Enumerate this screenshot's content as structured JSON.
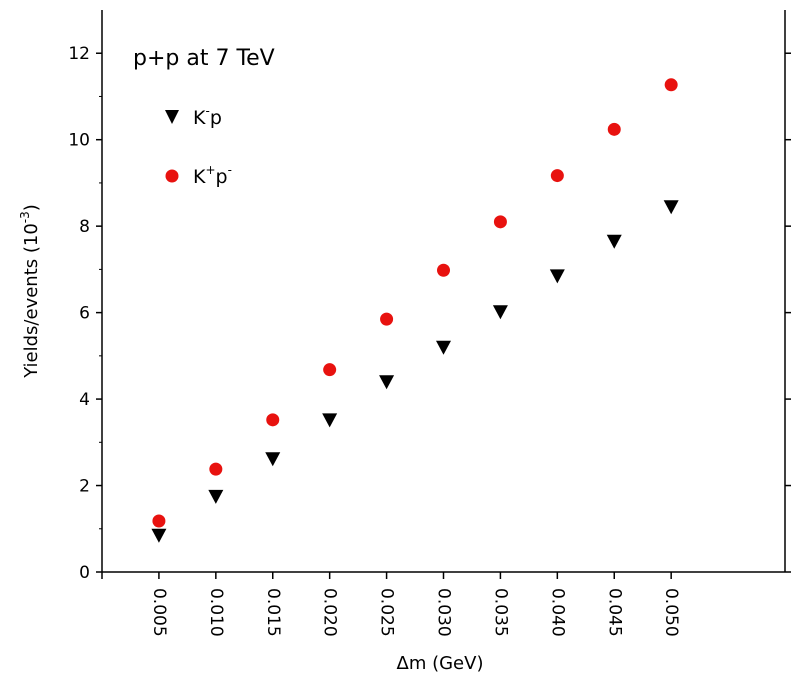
{
  "chart_data": {
    "type": "scatter",
    "annotation": "p+p at 7 TeV",
    "xlabel": "Δm (GeV)",
    "ylabel": {
      "main": "Yields/events (10",
      "sup": "-3",
      "close": ")"
    },
    "x": [
      0.005,
      0.01,
      0.015,
      0.02,
      0.025,
      0.03,
      0.035,
      0.04,
      0.045,
      0.05
    ],
    "x_tick_labels": [
      "0.005",
      "0.010",
      "0.015",
      "0.020",
      "0.025",
      "0.030",
      "0.035",
      "0.040",
      "0.045",
      "0.050"
    ],
    "y_ticks": [
      0,
      2,
      4,
      6,
      8,
      10,
      12
    ],
    "xlim": [
      0,
      0.06
    ],
    "ylim": [
      0,
      13
    ],
    "grid": false,
    "legend_position": "top-left",
    "series": [
      {
        "marker": "triangle-down",
        "color": "#000000",
        "legend": {
          "base": "K",
          "sup1": "-",
          "mid": "p",
          "sup2": ""
        },
        "values": [
          0.85,
          1.75,
          2.62,
          3.52,
          4.4,
          5.2,
          6.02,
          6.85,
          7.65,
          8.45
        ]
      },
      {
        "marker": "circle",
        "color": "#e8120f",
        "legend": {
          "base": "K",
          "sup1": "+",
          "mid": "p",
          "sup2": "-"
        },
        "values": [
          1.18,
          2.38,
          3.52,
          4.68,
          5.85,
          6.98,
          8.1,
          9.17,
          10.24,
          11.27
        ]
      }
    ]
  }
}
